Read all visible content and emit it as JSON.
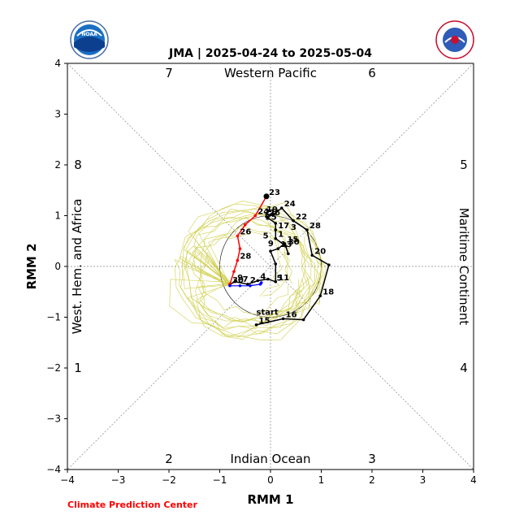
{
  "chart_data": {
    "type": "line",
    "title": "JMA | 2025-04-24 to 2025-05-04",
    "xlabel": "RMM 1",
    "ylabel": "RMM 2",
    "xlim": [
      -4,
      4
    ],
    "ylim": [
      -4,
      4
    ],
    "ticks": [
      "−4",
      "−3",
      "−2",
      "−1",
      "0",
      "1",
      "2",
      "3",
      "4"
    ],
    "tick_values": [
      -4,
      -3,
      -2,
      -1,
      0,
      1,
      2,
      3,
      4
    ],
    "regions": {
      "top": "Western Pacific",
      "bottom": "Indian Ocean",
      "left": "West. Hem. and Africa",
      "right": "Maritime Continent"
    },
    "phases": [
      "1",
      "2",
      "3",
      "4",
      "5",
      "6",
      "7",
      "8"
    ],
    "credit": "Climate Prediction Center",
    "colors": {
      "observed": "#000000",
      "recent": "#ff0000",
      "forecast_mean": "#0000ff",
      "ensemble": "#c8c832",
      "credit": "#ff0000"
    },
    "series": [
      {
        "points": [
          [
            -0.28,
            -1.15
          ],
          [
            0.25,
            -1.03
          ],
          [
            0.65,
            -1.05
          ],
          [
            0.98,
            -0.58
          ],
          [
            1.15,
            0.03
          ],
          [
            0.82,
            0.22
          ],
          [
            0.72,
            0.72
          ],
          [
            0.45,
            0.9
          ],
          [
            0.22,
            1.15
          ],
          [
            0.05,
            1.02
          ],
          [
            -0.08,
            0.98
          ],
          [
            0.1,
            0.85
          ],
          [
            0.1,
            0.72
          ],
          [
            0.1,
            0.55
          ],
          [
            0.3,
            0.4
          ],
          [
            0.35,
            0.25
          ],
          [
            0.28,
            0.45
          ],
          [
            0.15,
            0.35
          ],
          [
            0.0,
            0.3
          ],
          [
            0.1,
            0.05
          ],
          [
            0.1,
            -0.3
          ]
        ],
        "labels": [
          {
            "i": 0,
            "text": "15"
          },
          {
            "i": 1,
            "text": "16"
          },
          {
            "i": 3,
            "text": "18"
          },
          {
            "i": 5,
            "text": "20"
          },
          {
            "i": 7,
            "text": "22"
          },
          {
            "i": 8,
            "text": "24"
          },
          {
            "i": 6,
            "text": "28"
          },
          {
            "i": 10,
            "text": "26"
          },
          {
            "i": 12,
            "text": "17"
          },
          {
            "i": 13,
            "text": "1"
          },
          {
            "i": 14,
            "text": "30"
          },
          {
            "i": 16,
            "text": "15"
          },
          {
            "i": 17,
            "text": "13"
          },
          {
            "i": 20,
            "text": "11"
          }
        ]
      },
      {
        "points": [
          [
            0.1,
            -0.3
          ],
          [
            -0.05,
            -0.25
          ],
          [
            -0.25,
            -0.28
          ],
          [
            -0.45,
            -0.35
          ],
          [
            -0.7,
            -0.3
          ],
          [
            -0.8,
            -0.35
          ]
        ],
        "labels": [
          {
            "i": 2,
            "text": "4"
          },
          {
            "i": 3,
            "text": "2"
          },
          {
            "i": 4,
            "text": "9"
          },
          {
            "i": 5,
            "text": "30"
          }
        ]
      },
      {
        "points": [
          [
            -0.8,
            -0.35
          ],
          [
            -0.72,
            -0.1
          ],
          [
            -0.65,
            0.12
          ],
          [
            -0.6,
            0.35
          ],
          [
            -0.65,
            0.6
          ],
          [
            -0.5,
            0.82
          ],
          [
            -0.3,
            1.0
          ],
          [
            -0.08,
            1.38
          ]
        ],
        "labels": [
          {
            "i": 2,
            "text": "28"
          },
          {
            "i": 4,
            "text": "26"
          },
          {
            "i": 6,
            "text": "24"
          },
          {
            "i": 7,
            "text": "23"
          }
        ]
      },
      {
        "points": [
          [
            -0.8,
            -0.38
          ],
          [
            -0.6,
            -0.38
          ],
          [
            -0.4,
            -0.38
          ],
          [
            -0.2,
            -0.35
          ],
          [
            -0.18,
            -0.32
          ]
        ],
        "labels": []
      }
    ],
    "extra_labels": [
      {
        "x": -0.28,
        "y": -0.95,
        "text": "start"
      },
      {
        "x": -0.12,
        "y": 1.02,
        "text": "21"
      },
      {
        "x": -0.1,
        "y": 0.92,
        "text": "25"
      },
      {
        "x": -0.08,
        "y": 1.07,
        "text": "19"
      },
      {
        "x": -0.15,
        "y": 0.55,
        "text": "5"
      },
      {
        "x": 0.4,
        "y": 0.72,
        "text": "3"
      },
      {
        "x": -0.55,
        "y": -0.3,
        "text": "7"
      },
      {
        "x": 0.12,
        "y": -0.28,
        "text": "5"
      },
      {
        "x": -0.05,
        "y": 0.4,
        "text": "9"
      }
    ]
  }
}
